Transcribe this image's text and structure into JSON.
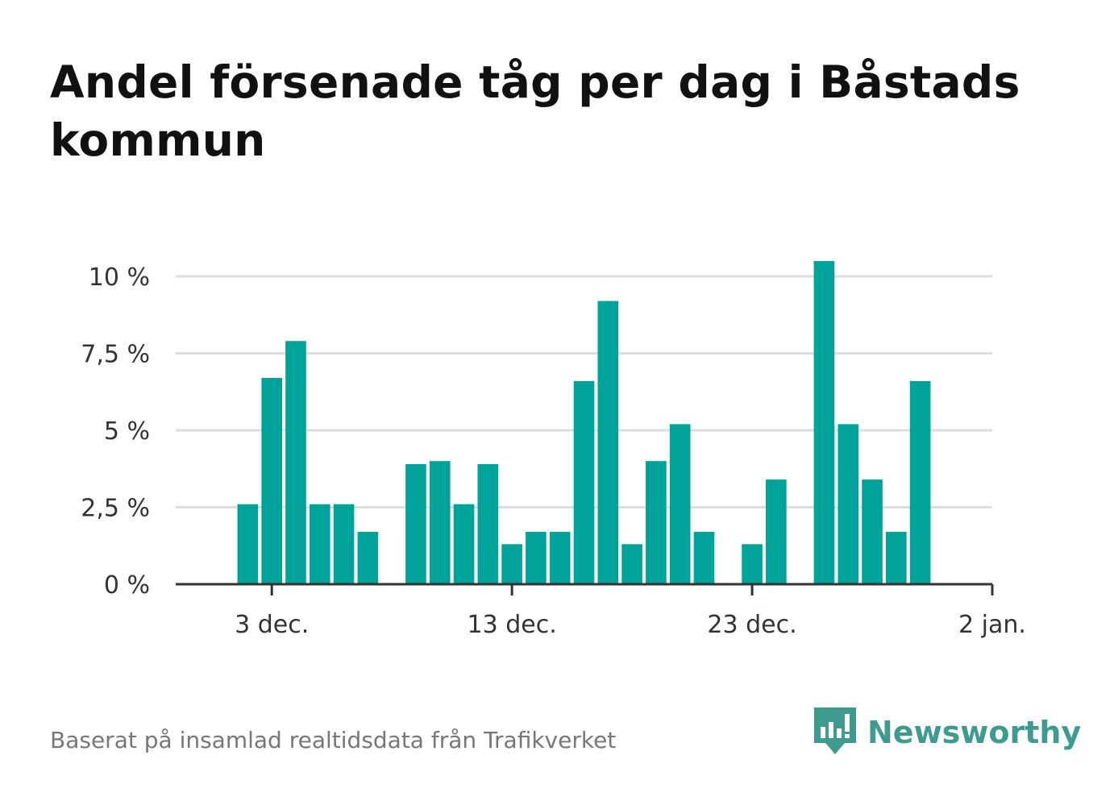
{
  "title": "Andel försenade tåg per dag i Båstads kommun",
  "source": "Baserat på insamlad realtidsdata från Trafikverket",
  "brand": {
    "name": "Newsworthy",
    "logo_icon": "newsworthy-logo-icon"
  },
  "colors": {
    "bar": "#00a39a",
    "grid": "#dddddd",
    "axis": "#333333",
    "brand": "#3f9a8f"
  },
  "chart_data": {
    "type": "bar",
    "title": "Andel försenade tåg per dag i Båstads kommun",
    "xlabel": "",
    "ylabel": "",
    "x_ticks": [
      {
        "date": "2022-12-03",
        "label": "3 dec."
      },
      {
        "date": "2022-12-13",
        "label": "13 dec."
      },
      {
        "date": "2022-12-23",
        "label": "23 dec."
      },
      {
        "date": "2023-01-02",
        "label": "2 jan."
      }
    ],
    "y_ticks": [
      {
        "value": 0,
        "label": "0 %"
      },
      {
        "value": 2.5,
        "label": "2,5 %"
      },
      {
        "value": 5,
        "label": "5 %"
      },
      {
        "value": 7.5,
        "label": "7,5 %"
      },
      {
        "value": 10,
        "label": "10 %"
      }
    ],
    "ylim": [
      0,
      10.5
    ],
    "xlim": [
      "2022-11-29",
      "2023-01-02"
    ],
    "grid": true,
    "unit": "%",
    "series": [
      {
        "points": [
          {
            "date": "2022-12-02",
            "value": 2.6
          },
          {
            "date": "2022-12-03",
            "value": 6.7
          },
          {
            "date": "2022-12-04",
            "value": 7.9
          },
          {
            "date": "2022-12-05",
            "value": 2.6
          },
          {
            "date": "2022-12-06",
            "value": 2.6
          },
          {
            "date": "2022-12-07",
            "value": 1.7
          },
          {
            "date": "2022-12-09",
            "value": 3.9
          },
          {
            "date": "2022-12-10",
            "value": 4.0
          },
          {
            "date": "2022-12-11",
            "value": 2.6
          },
          {
            "date": "2022-12-12",
            "value": 3.9
          },
          {
            "date": "2022-12-13",
            "value": 1.3
          },
          {
            "date": "2022-12-14",
            "value": 1.7
          },
          {
            "date": "2022-12-15",
            "value": 1.7
          },
          {
            "date": "2022-12-16",
            "value": 6.6
          },
          {
            "date": "2022-12-17",
            "value": 9.2
          },
          {
            "date": "2022-12-18",
            "value": 1.3
          },
          {
            "date": "2022-12-19",
            "value": 4.0
          },
          {
            "date": "2022-12-20",
            "value": 5.2
          },
          {
            "date": "2022-12-21",
            "value": 1.7
          },
          {
            "date": "2022-12-23",
            "value": 1.3
          },
          {
            "date": "2022-12-24",
            "value": 3.4
          },
          {
            "date": "2022-12-26",
            "value": 10.5
          },
          {
            "date": "2022-12-27",
            "value": 5.2
          },
          {
            "date": "2022-12-28",
            "value": 3.4
          },
          {
            "date": "2022-12-29",
            "value": 1.7
          },
          {
            "date": "2022-12-30",
            "value": 6.6
          }
        ]
      }
    ]
  }
}
